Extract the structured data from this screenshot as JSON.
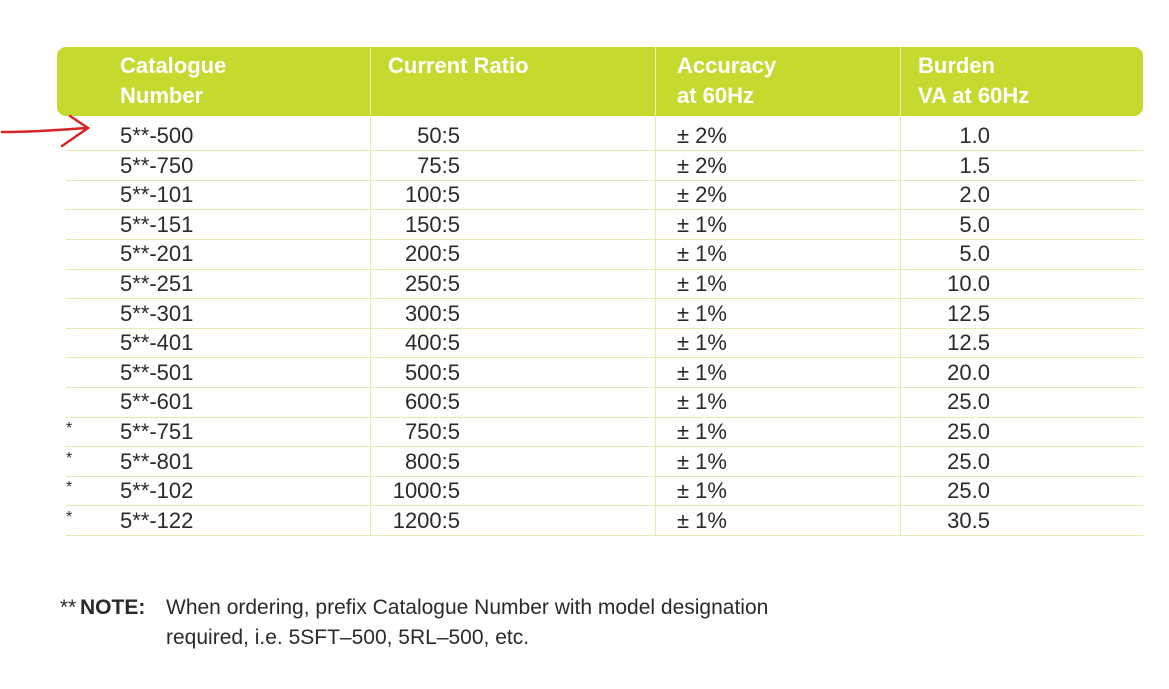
{
  "table": {
    "header": [
      [
        "Catalogue",
        "Number"
      ],
      [
        "Current Ratio"
      ],
      [
        "Accuracy",
        "at 60Hz"
      ],
      [
        "Burden",
        "VA at 60Hz"
      ]
    ],
    "rows": [
      {
        "catalogue": "5**-500",
        "ratio": "50:5",
        "accuracy": "± 2%",
        "burden": "1.0"
      },
      {
        "catalogue": "5**-750",
        "ratio": "75:5",
        "accuracy": "± 2%",
        "burden": "1.5"
      },
      {
        "catalogue": "5**-101",
        "ratio": "100:5",
        "accuracy": "± 2%",
        "burden": "2.0"
      },
      {
        "catalogue": "5**-151",
        "ratio": "150:5",
        "accuracy": "± 1%",
        "burden": "5.0"
      },
      {
        "catalogue": "5**-201",
        "ratio": "200:5",
        "accuracy": "± 1%",
        "burden": "5.0"
      },
      {
        "catalogue": "5**-251",
        "ratio": "250:5",
        "accuracy": "± 1%",
        "burden": "10.0"
      },
      {
        "catalogue": "5**-301",
        "ratio": "300:5",
        "accuracy": "± 1%",
        "burden": "12.5"
      },
      {
        "catalogue": "5**-401",
        "ratio": "400:5",
        "accuracy": "± 1%",
        "burden": "12.5"
      },
      {
        "catalogue": "5**-501",
        "ratio": "500:5",
        "accuracy": "± 1%",
        "burden": "20.0"
      },
      {
        "catalogue": "5**-601",
        "ratio": "600:5",
        "accuracy": "± 1%",
        "burden": "25.0"
      },
      {
        "mark": "*",
        "catalogue": "5**-751",
        "ratio": "750:5",
        "accuracy": "± 1%",
        "burden": "25.0"
      },
      {
        "mark": "*",
        "catalogue": "5**-801",
        "ratio": "800:5",
        "accuracy": "± 1%",
        "burden": "25.0"
      },
      {
        "mark": "*",
        "catalogue": "5**-102",
        "ratio": "1000:5",
        "accuracy": "± 1%",
        "burden": "25.0"
      },
      {
        "mark": "*",
        "catalogue": "5**-122",
        "ratio": "1200:5",
        "accuracy": "± 1%",
        "burden": "30.5"
      }
    ]
  },
  "note": {
    "prefix": "**",
    "label": "NOTE:",
    "lines": [
      "When ordering, prefix Catalogue Number with model designation",
      "required, i.e. 5SFT–500, 5RL–500, etc."
    ]
  }
}
